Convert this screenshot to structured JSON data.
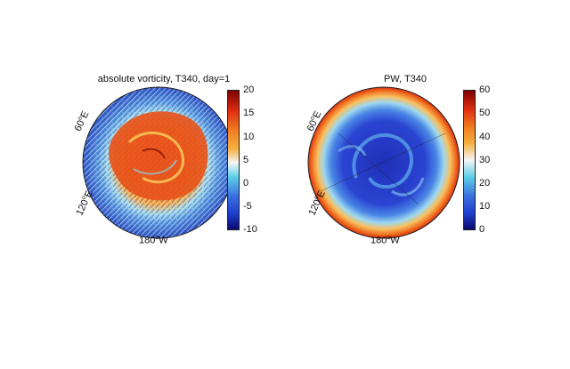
{
  "left_panel": {
    "title": "absolute vorticity, T340, day=1",
    "lon_labels": [
      "60",
      "120",
      "180"
    ],
    "lon_suffix_e": "E",
    "lon_suffix_w": "W",
    "deg": "o",
    "colorbar_ticks": [
      "20",
      "15",
      "10",
      "5",
      "0",
      "-5",
      "-10"
    ]
  },
  "right_panel": {
    "title": "PW, T340",
    "lon_labels": [
      "60",
      "120",
      "180"
    ],
    "lon_suffix_e": "E",
    "lon_suffix_w": "W",
    "deg": "o",
    "colorbar_ticks": [
      "60",
      "50",
      "40",
      "30",
      "20",
      "10",
      "0"
    ]
  },
  "colors": {
    "jet_top": "#7f0000",
    "jet_red": "#e03010",
    "jet_orange": "#f5a020",
    "jet_white": "#f5f5f5",
    "jet_cyan": "#5fd0e8",
    "jet_blue": "#2040d0",
    "jet_bottom": "#0a0a70"
  }
}
